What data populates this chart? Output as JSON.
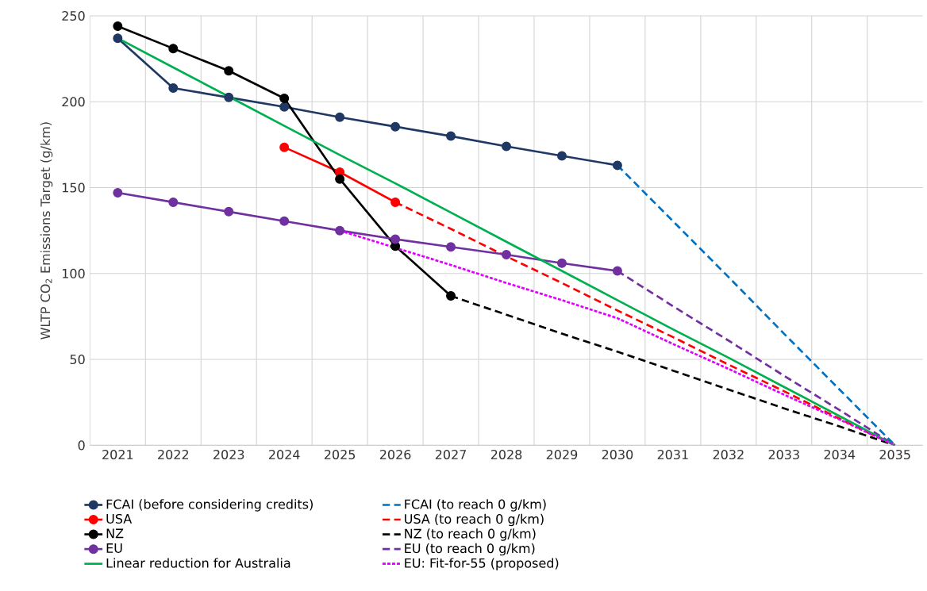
{
  "chart_data": {
    "type": "line",
    "ylabel": "WLTP CO$_{2}$ Emissions Target (g/km)",
    "categories": [
      "2021",
      "2022",
      "2023",
      "2024",
      "2025",
      "2026",
      "2027",
      "2028",
      "2029",
      "2030",
      "2031",
      "2032",
      "2033",
      "2034",
      "2035"
    ],
    "ylim": [
      0,
      250
    ],
    "yticks": [
      0,
      50,
      100,
      150,
      200,
      250
    ],
    "grid": true,
    "legend": "bottom",
    "series": [
      {
        "name": "FCAI (before considering credits)",
        "color": "#1f3864",
        "marker": "circle",
        "line_style": "solid",
        "values": [
          237,
          208,
          202.5,
          197,
          191,
          185.5,
          180,
          174,
          168.5,
          163,
          null,
          null,
          null,
          null,
          null
        ]
      },
      {
        "name": "FCAI (to reach 0 g/km)",
        "color": "#0070c0",
        "marker": "none",
        "line_style": "dashed",
        "values": [
          null,
          null,
          null,
          null,
          null,
          null,
          null,
          null,
          null,
          163,
          130.5,
          98,
          65,
          32.5,
          0
        ]
      },
      {
        "name": "USA",
        "color": "#ff0000",
        "marker": "circle",
        "line_style": "solid",
        "values": [
          null,
          null,
          null,
          173.5,
          159,
          141.5,
          null,
          null,
          null,
          null,
          null,
          null,
          null,
          null,
          null
        ]
      },
      {
        "name": "USA (to reach 0 g/km)",
        "color": "#ff0000",
        "marker": "none",
        "line_style": "dashed",
        "values": [
          null,
          null,
          null,
          null,
          null,
          141.5,
          126,
          110,
          94.5,
          78.5,
          63,
          47,
          31.5,
          15.5,
          0
        ]
      },
      {
        "name": "NZ",
        "color": "#000000",
        "marker": "circle",
        "line_style": "solid",
        "values": [
          244,
          231,
          218,
          202,
          155,
          116,
          87,
          null,
          null,
          null,
          null,
          null,
          null,
          null,
          null
        ]
      },
      {
        "name": "NZ (to reach 0 g/km)",
        "color": "#000000",
        "marker": "none",
        "line_style": "dashed",
        "values": [
          null,
          null,
          null,
          null,
          null,
          null,
          87,
          76,
          65,
          54.5,
          43.5,
          32.5,
          21.5,
          11,
          0
        ]
      },
      {
        "name": "EU",
        "color": "#7030a0",
        "marker": "circle",
        "line_style": "solid",
        "values": [
          147,
          141.5,
          136,
          130.5,
          125,
          120,
          115.5,
          111,
          106,
          101.5,
          null,
          null,
          null,
          null,
          null
        ]
      },
      {
        "name": "EU (to reach 0 g/km)",
        "color": "#7030a0",
        "marker": "none",
        "line_style": "dashed",
        "values": [
          null,
          null,
          null,
          null,
          null,
          null,
          null,
          null,
          null,
          101.5,
          81,
          61,
          40.5,
          20.5,
          0
        ]
      },
      {
        "name": "Linear reduction for Australia",
        "color": "#00b050",
        "marker": "none",
        "line_style": "solid",
        "values": [
          237,
          220,
          203,
          186,
          169,
          152.5,
          135.5,
          118.5,
          101.5,
          84.5,
          67.5,
          51,
          34,
          17,
          0
        ]
      },
      {
        "name": "EU: Fit-for-55 (proposed)",
        "color": "#e100ff",
        "marker": "none",
        "line_style": "dotted",
        "values": [
          null,
          null,
          null,
          null,
          125,
          115,
          105,
          94.5,
          84.5,
          74,
          59,
          44.5,
          29.5,
          15,
          0
        ]
      }
    ]
  }
}
